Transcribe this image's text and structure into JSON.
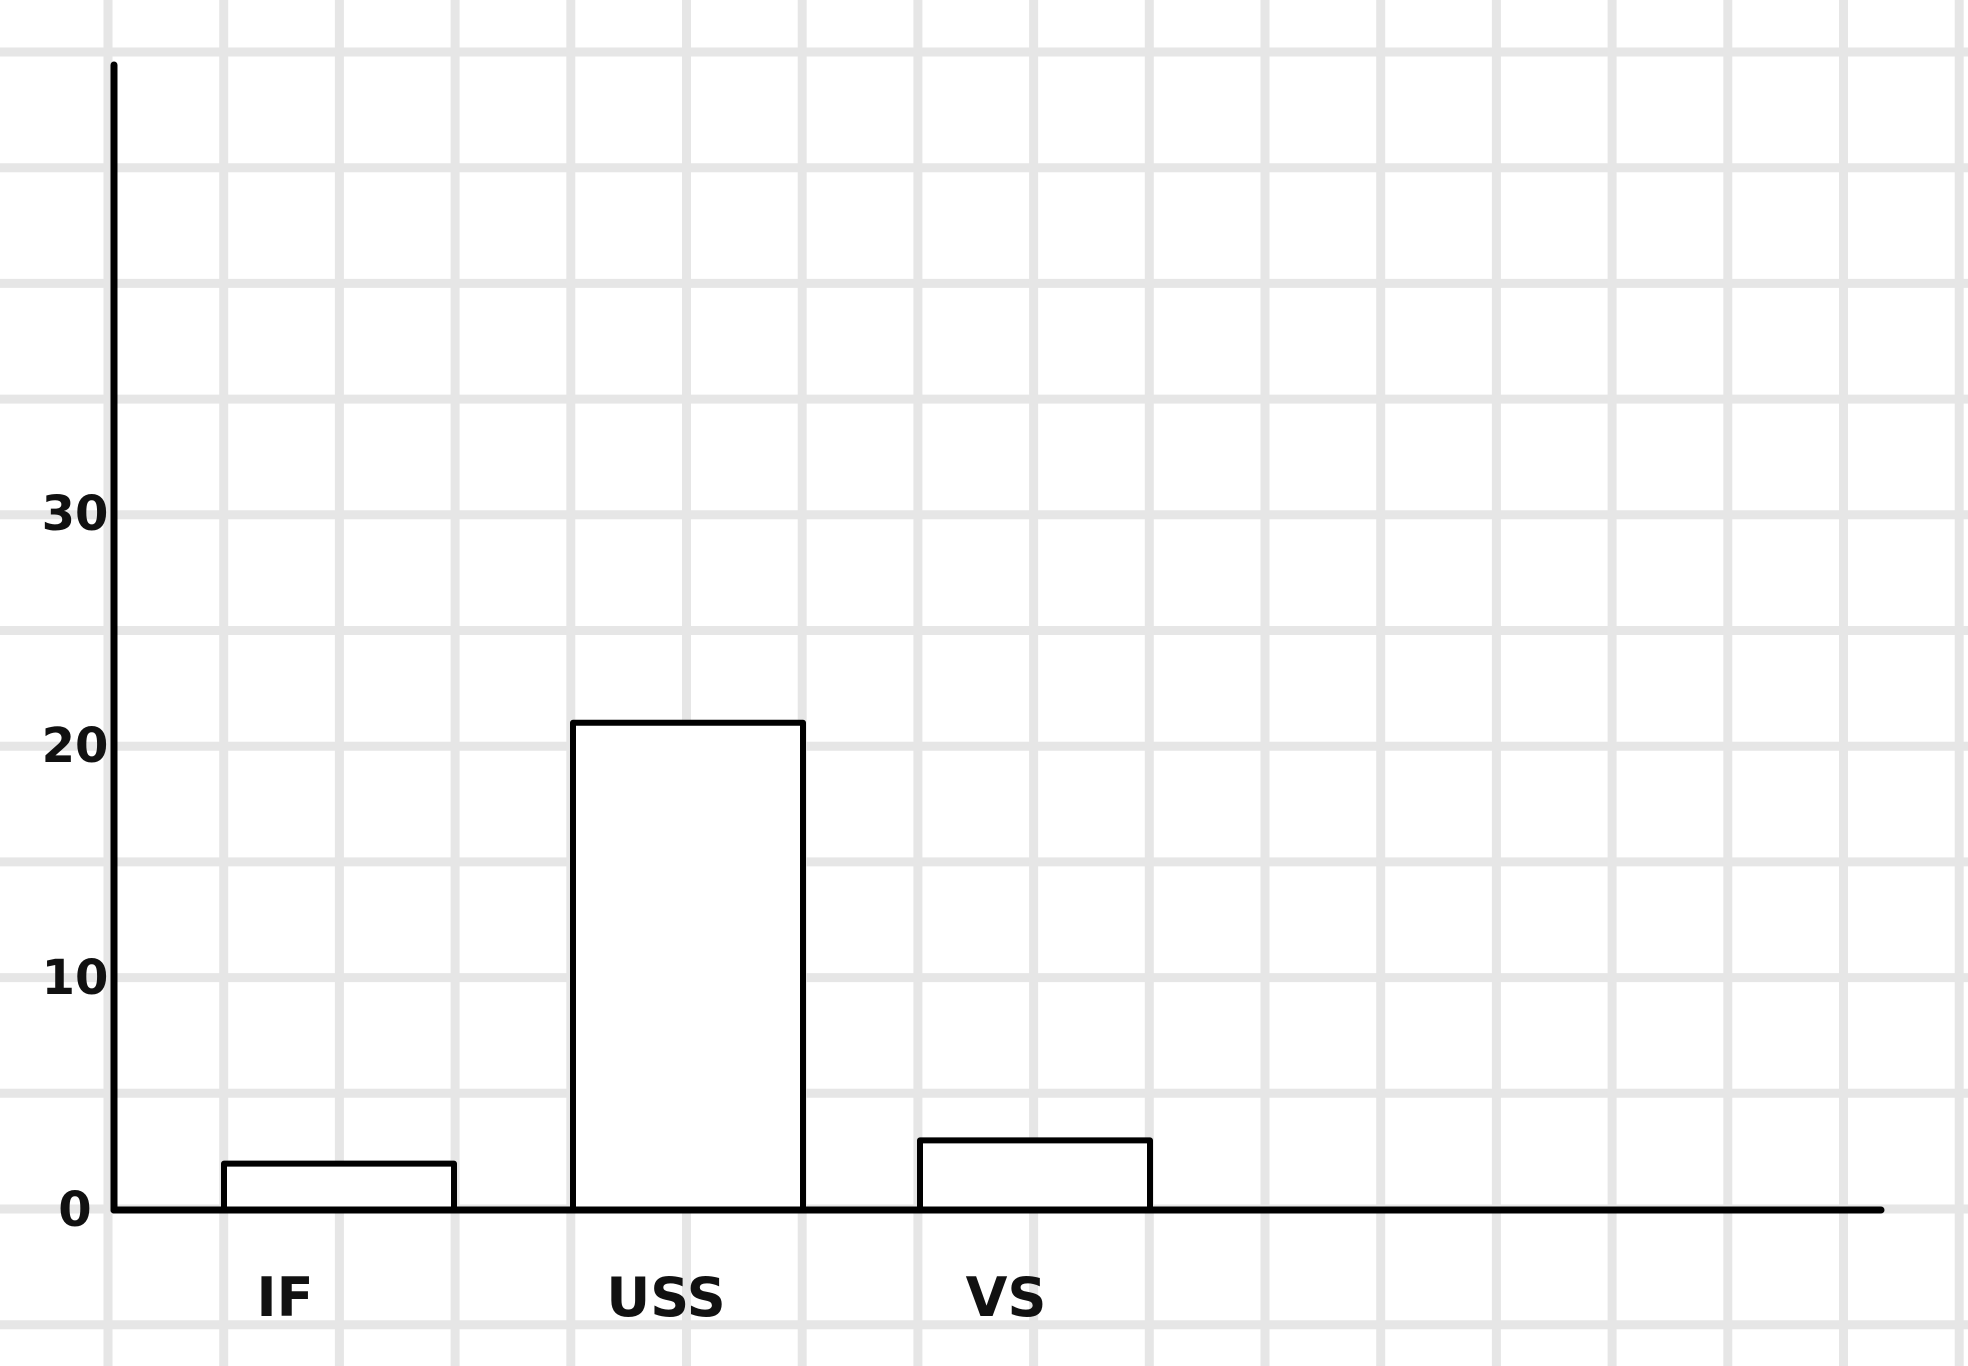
{
  "chart_data": {
    "type": "bar",
    "categories": [
      "IF",
      "USS",
      "VS"
    ],
    "values": [
      2,
      21,
      3
    ],
    "yticks": [
      "0",
      "10",
      "20",
      "30"
    ],
    "ytick_values": [
      0,
      10,
      20,
      30
    ],
    "title": "",
    "xlabel": "",
    "ylabel": "",
    "ylim": [
      0,
      49
    ],
    "grid": true,
    "legend": "none",
    "colors": {
      "grid": "#e6e6e6",
      "axis": "#000000",
      "bar_fill": "#ffffff",
      "bar_stroke": "#000000",
      "background": "#ffffff"
    }
  }
}
